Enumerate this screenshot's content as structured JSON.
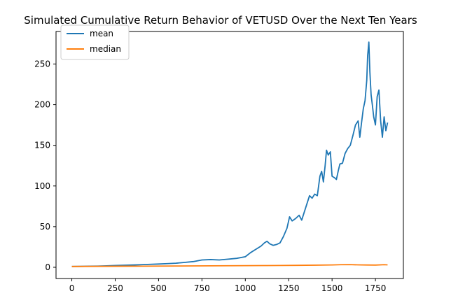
{
  "chart_data": {
    "type": "line",
    "title": "Simulated Cumulative Return Behavior of VETUSD Over the Next Ten Years",
    "xlabel": "",
    "ylabel": "",
    "xlim": [
      -91,
      1911
    ],
    "ylim": [
      -13.8,
      290
    ],
    "x_ticks": [
      0,
      250,
      500,
      750,
      1000,
      1250,
      1500,
      1750
    ],
    "y_ticks": [
      0,
      50,
      100,
      150,
      200,
      250
    ],
    "grid": false,
    "legend": {
      "placement": "top-left",
      "entries": [
        "mean",
        "median"
      ]
    },
    "series": [
      {
        "name": "mean",
        "color": "#1f77b4",
        "points": [
          [
            0,
            1
          ],
          [
            50,
            1.1
          ],
          [
            100,
            1.3
          ],
          [
            150,
            1.5
          ],
          [
            200,
            1.8
          ],
          [
            250,
            2.2
          ],
          [
            300,
            2.5
          ],
          [
            350,
            2.8
          ],
          [
            400,
            3.2
          ],
          [
            450,
            3.6
          ],
          [
            500,
            4
          ],
          [
            550,
            4.5
          ],
          [
            600,
            5
          ],
          [
            650,
            6
          ],
          [
            700,
            7
          ],
          [
            750,
            9
          ],
          [
            800,
            9.5
          ],
          [
            850,
            9
          ],
          [
            900,
            10
          ],
          [
            950,
            11
          ],
          [
            1000,
            13
          ],
          [
            1030,
            18
          ],
          [
            1060,
            22
          ],
          [
            1090,
            26
          ],
          [
            1110,
            30
          ],
          [
            1125,
            32
          ],
          [
            1140,
            29
          ],
          [
            1160,
            27
          ],
          [
            1180,
            28
          ],
          [
            1200,
            30
          ],
          [
            1220,
            38
          ],
          [
            1240,
            48
          ],
          [
            1255,
            62
          ],
          [
            1270,
            57
          ],
          [
            1290,
            60
          ],
          [
            1310,
            64
          ],
          [
            1325,
            58
          ],
          [
            1340,
            68
          ],
          [
            1355,
            78
          ],
          [
            1370,
            88
          ],
          [
            1385,
            85
          ],
          [
            1400,
            90
          ],
          [
            1415,
            88
          ],
          [
            1430,
            112
          ],
          [
            1440,
            118
          ],
          [
            1450,
            105
          ],
          [
            1460,
            125
          ],
          [
            1468,
            144
          ],
          [
            1478,
            138
          ],
          [
            1490,
            142
          ],
          [
            1500,
            112
          ],
          [
            1515,
            110
          ],
          [
            1525,
            108
          ],
          [
            1535,
            118
          ],
          [
            1545,
            127
          ],
          [
            1560,
            128
          ],
          [
            1575,
            140
          ],
          [
            1590,
            146
          ],
          [
            1605,
            150
          ],
          [
            1620,
            162
          ],
          [
            1635,
            175
          ],
          [
            1650,
            180
          ],
          [
            1660,
            160
          ],
          [
            1670,
            178
          ],
          [
            1680,
            195
          ],
          [
            1690,
            205
          ],
          [
            1700,
            230
          ],
          [
            1705,
            260
          ],
          [
            1712,
            277
          ],
          [
            1718,
            240
          ],
          [
            1725,
            212
          ],
          [
            1732,
            200
          ],
          [
            1740,
            185
          ],
          [
            1750,
            175
          ],
          [
            1760,
            210
          ],
          [
            1770,
            218
          ],
          [
            1780,
            180
          ],
          [
            1790,
            160
          ],
          [
            1800,
            185
          ],
          [
            1810,
            168
          ],
          [
            1820,
            178
          ]
        ]
      },
      {
        "name": "median",
        "color": "#ff7f0e",
        "points": [
          [
            0,
            1
          ],
          [
            100,
            1.1
          ],
          [
            200,
            1.2
          ],
          [
            300,
            1.3
          ],
          [
            400,
            1.4
          ],
          [
            500,
            1.5
          ],
          [
            600,
            1.6
          ],
          [
            700,
            1.7
          ],
          [
            800,
            1.8
          ],
          [
            900,
            1.9
          ],
          [
            1000,
            2
          ],
          [
            1100,
            2.1
          ],
          [
            1200,
            2.2
          ],
          [
            1300,
            2.4
          ],
          [
            1400,
            2.6
          ],
          [
            1500,
            2.9
          ],
          [
            1550,
            3.2
          ],
          [
            1600,
            3.3
          ],
          [
            1650,
            3
          ],
          [
            1700,
            2.8
          ],
          [
            1750,
            2.7
          ],
          [
            1800,
            3.2
          ],
          [
            1820,
            3
          ]
        ]
      }
    ]
  }
}
